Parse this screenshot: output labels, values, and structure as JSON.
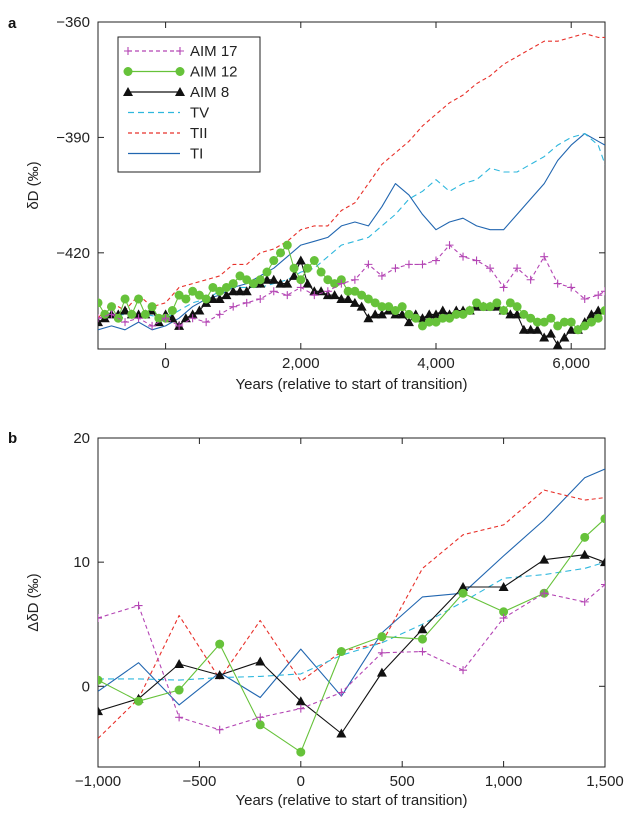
{
  "chart_data": [
    {
      "panel": "a",
      "type": "line",
      "xlabel": "Years (relative to start of transition)",
      "ylabel": "δD (‰)",
      "xlim": [
        -1000,
        6500
      ],
      "ylim": [
        -445,
        -360
      ],
      "xticks": [
        0,
        2000,
        4000,
        6000
      ],
      "xtick_labels": [
        "0",
        "2,000",
        "4,000",
        "6,000"
      ],
      "yticks": [
        -360,
        -390,
        -420
      ],
      "ytick_labels": [
        "−360",
        "−390",
        "−420"
      ],
      "legend_position": "top-left",
      "series": [
        {
          "name": "AIM 17",
          "color": "#b445b4",
          "dash": "4,3",
          "marker": "plus",
          "x": [
            -1000,
            -800,
            -600,
            -400,
            -200,
            0,
            200,
            400,
            600,
            800,
            1000,
            1200,
            1400,
            1600,
            1800,
            2000,
            2200,
            2400,
            2600,
            2800,
            3000,
            3200,
            3400,
            3600,
            3800,
            4000,
            4200,
            4400,
            4600,
            4800,
            5000,
            5200,
            5400,
            5600,
            5800,
            6000,
            6200,
            6400,
            6500
          ],
          "y": [
            -437,
            -436,
            -438,
            -437,
            -439,
            -437,
            -439,
            -437,
            -438,
            -436,
            -434,
            -433,
            -432,
            -430,
            -431,
            -429,
            -431,
            -430,
            -428,
            -427,
            -423,
            -426,
            -424,
            -423,
            -423,
            -422,
            -418,
            -421,
            -422,
            -424,
            -429,
            -424,
            -427,
            -421,
            -428,
            -429,
            -432,
            -431,
            -430
          ]
        },
        {
          "name": "AIM 12",
          "color": "#66c23a",
          "dash": "",
          "marker": "circle",
          "x": [
            -1000,
            -900,
            -800,
            -700,
            -600,
            -500,
            -400,
            -300,
            -200,
            -100,
            0,
            100,
            200,
            300,
            400,
            500,
            600,
            700,
            800,
            900,
            1000,
            1100,
            1200,
            1300,
            1400,
            1500,
            1600,
            1700,
            1800,
            1900,
            2000,
            2100,
            2200,
            2300,
            2400,
            2500,
            2600,
            2700,
            2800,
            2900,
            3000,
            3100,
            3200,
            3300,
            3400,
            3500,
            3600,
            3700,
            3800,
            3900,
            4000,
            4100,
            4200,
            4300,
            4400,
            4500,
            4600,
            4700,
            4800,
            4900,
            5000,
            5100,
            5200,
            5300,
            5400,
            5500,
            5600,
            5700,
            5800,
            5900,
            6000,
            6100,
            6200,
            6300,
            6400,
            6500
          ],
          "y": [
            -433,
            -436,
            -434,
            -437,
            -432,
            -436,
            -432,
            -436,
            -434,
            -437,
            -437,
            -435,
            -431,
            -432,
            -430,
            -431,
            -432,
            -429,
            -430,
            -429,
            -428,
            -426,
            -427,
            -428,
            -427,
            -425,
            -422,
            -420,
            -418,
            -424,
            -427,
            -424,
            -422,
            -425,
            -427,
            -428,
            -427,
            -430,
            -430,
            -431,
            -432,
            -433,
            -434,
            -434,
            -435,
            -434,
            -436,
            -437,
            -439,
            -438,
            -438,
            -437,
            -437,
            -436,
            -436,
            -435,
            -433,
            -434,
            -434,
            -433,
            -435,
            -433,
            -434,
            -436,
            -437,
            -438,
            -438,
            -437,
            -439,
            -438,
            -438,
            -440,
            -439,
            -438,
            -437,
            -435
          ]
        },
        {
          "name": "AIM 8",
          "color": "#111111",
          "dash": "",
          "marker": "triangle",
          "x": [
            -1000,
            -900,
            -800,
            -700,
            -600,
            -500,
            -400,
            -300,
            -200,
            -100,
            0,
            100,
            200,
            300,
            400,
            500,
            600,
            700,
            800,
            900,
            1000,
            1100,
            1200,
            1300,
            1400,
            1500,
            1600,
            1700,
            1800,
            1900,
            2000,
            2100,
            2200,
            2300,
            2400,
            2500,
            2600,
            2700,
            2800,
            2900,
            3000,
            3100,
            3200,
            3300,
            3400,
            3500,
            3600,
            3700,
            3800,
            3900,
            4000,
            4100,
            4200,
            4300,
            4400,
            4500,
            4600,
            4700,
            4800,
            4900,
            5000,
            5100,
            5200,
            5300,
            5400,
            5500,
            5600,
            5700,
            5800,
            5900,
            6000,
            6100,
            6200,
            6300,
            6400,
            6500
          ],
          "y": [
            -438,
            -437,
            -436,
            -436,
            -435,
            -436,
            -436,
            -436,
            -435,
            -438,
            -436,
            -437,
            -439,
            -437,
            -436,
            -435,
            -433,
            -432,
            -432,
            -431,
            -430,
            -430,
            -430,
            -428,
            -428,
            -427,
            -427,
            -428,
            -428,
            -426,
            -422,
            -428,
            -430,
            -430,
            -431,
            -431,
            -432,
            -432,
            -433,
            -434,
            -437,
            -436,
            -436,
            -435,
            -436,
            -436,
            -438,
            -436,
            -437,
            -436,
            -436,
            -435,
            -436,
            -435,
            -435,
            -435,
            -434,
            -434,
            -434,
            -434,
            -435,
            -436,
            -436,
            -440,
            -440,
            -440,
            -442,
            -441,
            -444,
            -442,
            -440,
            -440,
            -438,
            -436,
            -435,
            -435
          ]
        },
        {
          "name": "TV",
          "color": "#2eb7dd",
          "dash": "6,4",
          "marker": "none",
          "x": [
            -1000,
            -600,
            -300,
            0,
            200,
            400,
            600,
            800,
            1000,
            1200,
            1400,
            1600,
            1800,
            2000,
            2200,
            2400,
            2600,
            2800,
            3000,
            3200,
            3400,
            3600,
            3800,
            4000,
            4200,
            4400,
            4600,
            4800,
            5000,
            5200,
            5400,
            5600,
            5800,
            6000,
            6200,
            6400,
            6500
          ],
          "y": [
            -437,
            -436,
            -436,
            -437,
            -435,
            -433,
            -432,
            -430,
            -429,
            -429,
            -429,
            -428,
            -427,
            -425,
            -424,
            -421,
            -418,
            -417,
            -416,
            -413,
            -410,
            -406,
            -404,
            -401,
            -404,
            -402,
            -401,
            -398,
            -399,
            -399,
            -397,
            -395,
            -392,
            -390,
            -389,
            -392,
            -397
          ]
        },
        {
          "name": "TII",
          "color": "#e8302a",
          "dash": "4,3",
          "marker": "none",
          "x": [
            -1000,
            -800,
            -600,
            -400,
            -200,
            0,
            200,
            400,
            600,
            800,
            1000,
            1200,
            1400,
            1600,
            1800,
            2000,
            2200,
            2400,
            2600,
            2800,
            3000,
            3200,
            3400,
            3600,
            3800,
            4000,
            4200,
            4400,
            4600,
            4800,
            5000,
            5200,
            5400,
            5600,
            5800,
            6000,
            6200,
            6400,
            6500
          ],
          "y": [
            -437,
            -433,
            -435,
            -431,
            -434,
            -433,
            -429,
            -428,
            -427,
            -426,
            -423,
            -423,
            -420,
            -419,
            -417,
            -414,
            -413,
            -413,
            -409,
            -407,
            -402,
            -397,
            -394,
            -391,
            -387,
            -384,
            -381,
            -379,
            -376,
            -374,
            -371,
            -369,
            -367,
            -365,
            -365,
            -364,
            -363,
            -364,
            -364
          ]
        },
        {
          "name": "TI",
          "color": "#2166b0",
          "dash": "",
          "marker": "none",
          "x": [
            -1000,
            -800,
            -600,
            -400,
            -200,
            0,
            200,
            400,
            600,
            800,
            1000,
            1200,
            1400,
            1600,
            1800,
            2000,
            2200,
            2400,
            2600,
            2800,
            3000,
            3200,
            3400,
            3600,
            3800,
            4000,
            4200,
            4400,
            4600,
            4800,
            5000,
            5200,
            5400,
            5600,
            5800,
            6000,
            6200,
            6400,
            6500
          ],
          "y": [
            -440,
            -439,
            -440,
            -438,
            -440,
            -439,
            -437,
            -434,
            -432,
            -431,
            -429,
            -428,
            -426,
            -424,
            -421,
            -418,
            -417,
            -416,
            -413,
            -412,
            -413,
            -408,
            -402,
            -405,
            -410,
            -414,
            -412,
            -411,
            -413,
            -414,
            -414,
            -410,
            -406,
            -402,
            -396,
            -392,
            -389,
            -391,
            -392
          ]
        }
      ]
    },
    {
      "panel": "b",
      "type": "line",
      "xlabel": "Years (relative to start of transition)",
      "ylabel": "ΔδD (‰)",
      "xlim": [
        -1000,
        1500
      ],
      "ylim": [
        -6.5,
        20
      ],
      "xticks": [
        -1000,
        -500,
        0,
        500,
        1000,
        1500
      ],
      "xtick_labels": [
        "−1,000",
        "−500",
        "0",
        "500",
        "1,000",
        "1,500"
      ],
      "yticks": [
        0,
        10,
        20
      ],
      "ytick_labels": [
        "0",
        "10",
        "20"
      ],
      "series": [
        {
          "name": "AIM 17",
          "color": "#b445b4",
          "dash": "4,3",
          "marker": "plus",
          "x": [
            -1000,
            -800,
            -600,
            -400,
            -200,
            0,
            200,
            400,
            600,
            800,
            1000,
            1200,
            1400,
            1500
          ],
          "y": [
            5.5,
            6.5,
            -2.5,
            -3.5,
            -2.5,
            -1.8,
            -0.5,
            2.7,
            2.8,
            1.3,
            5.5,
            7.5,
            6.8,
            8.2
          ]
        },
        {
          "name": "AIM 12",
          "color": "#66c23a",
          "dash": "",
          "marker": "circle",
          "x": [
            -1000,
            -800,
            -600,
            -400,
            -200,
            0,
            200,
            400,
            600,
            800,
            1000,
            1200,
            1400,
            1500
          ],
          "y": [
            0.5,
            -1.2,
            -0.3,
            3.4,
            -3.1,
            -5.3,
            2.8,
            4.0,
            3.8,
            7.5,
            6.0,
            7.5,
            12.0,
            13.5
          ]
        },
        {
          "name": "AIM 8",
          "color": "#111111",
          "dash": "",
          "marker": "triangle",
          "x": [
            -1000,
            -800,
            -600,
            -400,
            -200,
            0,
            200,
            400,
            600,
            800,
            1000,
            1200,
            1400,
            1500
          ],
          "y": [
            -2.0,
            -1.0,
            1.8,
            0.9,
            2.0,
            -1.2,
            -3.8,
            1.1,
            4.6,
            8.0,
            8.0,
            10.2,
            10.6,
            10.0
          ]
        },
        {
          "name": "TV",
          "color": "#2eb7dd",
          "dash": "6,4",
          "marker": "none",
          "x": [
            -1000,
            -800,
            -600,
            -400,
            -200,
            0,
            200,
            400,
            600,
            800,
            1000,
            1200,
            1400,
            1500
          ],
          "y": [
            0.6,
            0.6,
            0.5,
            0.7,
            0.8,
            1.0,
            2.5,
            3.5,
            5.0,
            6.8,
            8.7,
            9.0,
            9.5,
            10.0
          ]
        },
        {
          "name": "TII",
          "color": "#e8302a",
          "dash": "4,3",
          "marker": "none",
          "x": [
            -1000,
            -800,
            -600,
            -400,
            -200,
            0,
            200,
            400,
            600,
            800,
            1000,
            1200,
            1400,
            1500
          ],
          "y": [
            -4.2,
            -1.0,
            5.7,
            0.6,
            5.3,
            0.4,
            2.8,
            3.5,
            9.5,
            12.2,
            13.0,
            15.8,
            15.0,
            15.2
          ]
        },
        {
          "name": "TI",
          "color": "#2166b0",
          "dash": "",
          "marker": "none",
          "x": [
            -1000,
            -800,
            -600,
            -400,
            -200,
            0,
            200,
            400,
            600,
            800,
            1000,
            1200,
            1400,
            1500
          ],
          "y": [
            -0.4,
            1.9,
            -1.5,
            1.1,
            -0.9,
            3.0,
            -0.8,
            4.3,
            7.2,
            7.5,
            10.5,
            13.4,
            16.8,
            17.5
          ]
        }
      ]
    }
  ]
}
